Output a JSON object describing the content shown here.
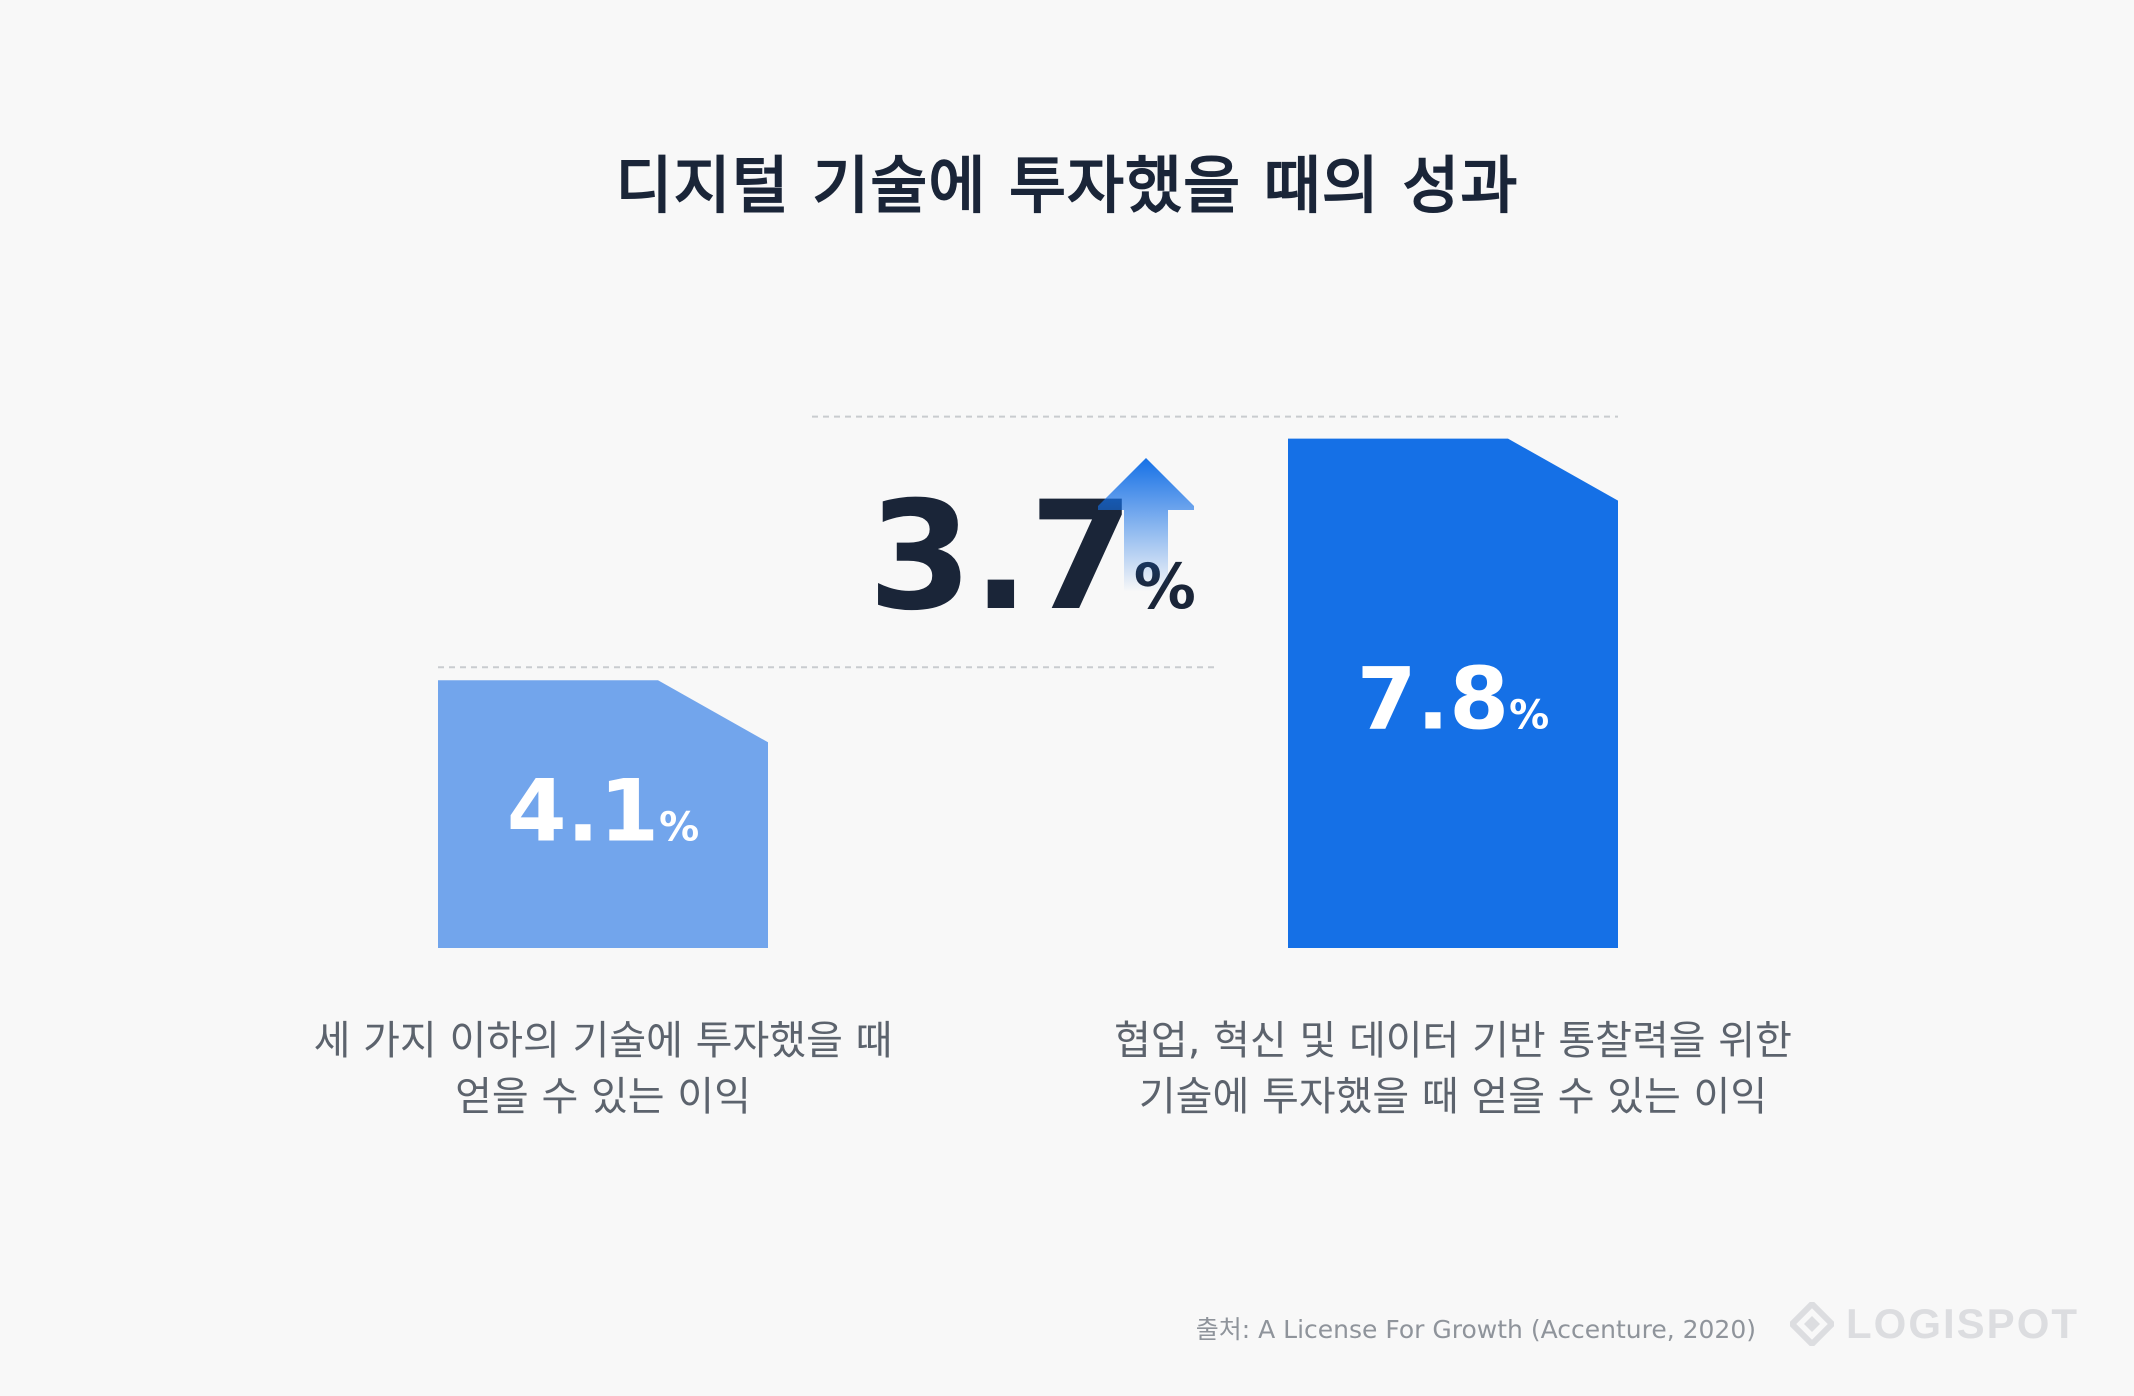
{
  "title": "디지털 기술에 투자했을 때의 성과",
  "chart_data": {
    "type": "bar",
    "categories": [
      [
        "세 가지 이하의 기술에 투자했을 때",
        "얻을 수 있는 이익"
      ],
      [
        "협업, 혁신 및 데이터 기반 통찰력을 위한",
        "기술에 투자했을 때 얻을 수 있는 이익"
      ]
    ],
    "values": [
      4.1,
      7.8
    ],
    "value_labels": [
      "4.1",
      "7.8"
    ],
    "unit": "%",
    "difference": {
      "value_label": "3.7",
      "unit": "%",
      "direction": "up"
    },
    "colors": [
      "#72a5ec",
      "#1570e6"
    ],
    "grid": false,
    "legend": "none"
  },
  "source": "출처: A License For Growth (Accenture, 2020)",
  "logo": {
    "text": "LOGISPOT",
    "icon": "diamond-logo-icon"
  }
}
